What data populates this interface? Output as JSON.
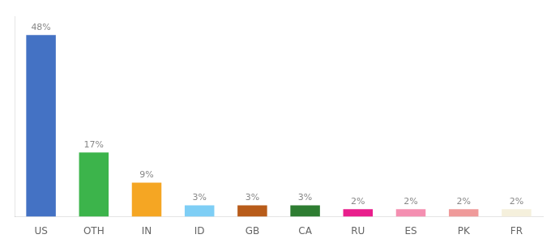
{
  "chart_data": {
    "type": "bar",
    "categories": [
      "US",
      "OTH",
      "IN",
      "ID",
      "GB",
      "CA",
      "RU",
      "ES",
      "PK",
      "FR"
    ],
    "values": [
      48,
      17,
      9,
      3,
      3,
      3,
      2,
      2,
      2,
      2
    ],
    "value_labels": [
      "48%",
      "17%",
      "9%",
      "3%",
      "3%",
      "3%",
      "2%",
      "2%",
      "2%",
      "2%"
    ],
    "colors": [
      "#4472c4",
      "#3cb44b",
      "#f5a623",
      "#7ecef5",
      "#b85c1a",
      "#2e7d32",
      "#e91e8c",
      "#f48fb1",
      "#ef9a9a",
      "#f5f0dc"
    ],
    "ylim": [
      0,
      53
    ],
    "grid": false,
    "data_labels": true,
    "tick_labels": "x"
  }
}
